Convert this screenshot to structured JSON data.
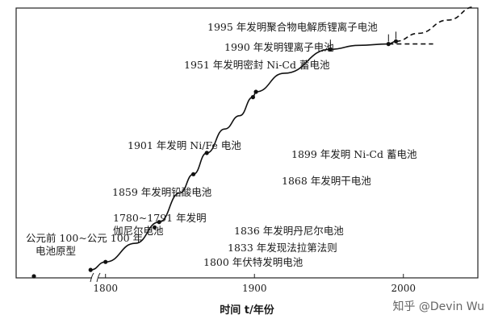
{
  "chart_data": {
    "type": "line",
    "title": "",
    "xlabel": "时间 t/年份",
    "ylabel": "",
    "x_ticks": [
      1800,
      1900,
      2000
    ],
    "xlim": [
      1740,
      2050
    ],
    "ylim": [
      0,
      1
    ],
    "grid": false,
    "series": [
      {
        "style": "solid",
        "x": [
          1790,
          1800,
          1820,
          1836,
          1850,
          1859,
          1868,
          1880,
          1890,
          1899,
          1901,
          1920,
          1951,
          1970,
          1990,
          1995
        ],
        "y": [
          0.03,
          0.06,
          0.13,
          0.21,
          0.32,
          0.39,
          0.47,
          0.56,
          0.61,
          0.68,
          0.7,
          0.77,
          0.86,
          0.875,
          0.88,
          0.89
        ]
      },
      {
        "style": "dashed",
        "x": [
          1995,
          2010,
          2030,
          2048
        ],
        "y": [
          0.89,
          0.92,
          0.97,
          1.02
        ]
      },
      {
        "style": "dashed",
        "x": [
          1990,
          2020
        ],
        "y": [
          0.88,
          0.88
        ]
      }
    ],
    "annotations": [
      {
        "text": "公元前 100~公元 100 年",
        "text2": "电池原型",
        "x": 1710,
        "y": 0.0
      },
      {
        "text": "1780~1791 年发明",
        "text2": "伽尼尔电池",
        "x": 1790,
        "y": 0.03
      },
      {
        "text": "1800 年伏特发明电池",
        "x": 1800,
        "y": 0.06
      },
      {
        "text": "1833 年发现法拉第法则",
        "x": 1833,
        "y": 0.19
      },
      {
        "text": "1836 年发明丹尼尔电池",
        "x": 1836,
        "y": 0.21
      },
      {
        "text": "1859 年发明铅酸电池",
        "x": 1859,
        "y": 0.39
      },
      {
        "text": "1868 年发明干电池",
        "x": 1868,
        "y": 0.47
      },
      {
        "text": "1899 年发明 Ni-Cd 蓄电池",
        "x": 1899,
        "y": 0.68
      },
      {
        "text": "1901 年发明 Ni/Fe 电池",
        "x": 1901,
        "y": 0.7
      },
      {
        "text": "1951 年发明密封 Ni-Cd 蓄电池",
        "x": 1951,
        "y": 0.86
      },
      {
        "text": "1990 年发明锂离子电池",
        "x": 1990,
        "y": 0.88
      },
      {
        "text": "1995 年发明聚合物电解质锂离子电池",
        "x": 1995,
        "y": 0.89
      }
    ]
  },
  "watermark": "知乎 @Devin Wu",
  "axis_break": "≈"
}
